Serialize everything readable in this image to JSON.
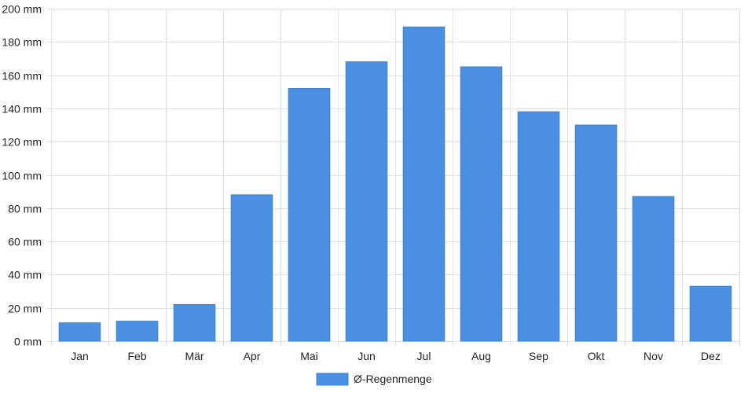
{
  "chart_data": {
    "type": "bar",
    "categories": [
      "Jan",
      "Feb",
      "Mär",
      "Apr",
      "Mai",
      "Jun",
      "Jul",
      "Aug",
      "Sep",
      "Okt",
      "Nov",
      "Dez"
    ],
    "series": [
      {
        "name": "Ø-Regenmenge",
        "values": [
          11,
          12,
          22,
          88,
          152,
          168,
          189,
          165,
          138,
          130,
          87,
          33
        ],
        "color": "#4a90e2"
      }
    ],
    "ylim": [
      0,
      200
    ],
    "yticks": [
      0,
      20,
      40,
      60,
      80,
      100,
      120,
      140,
      160,
      180,
      200
    ],
    "y_unit": "mm",
    "grid": true,
    "legend_position": "bottom-center"
  }
}
